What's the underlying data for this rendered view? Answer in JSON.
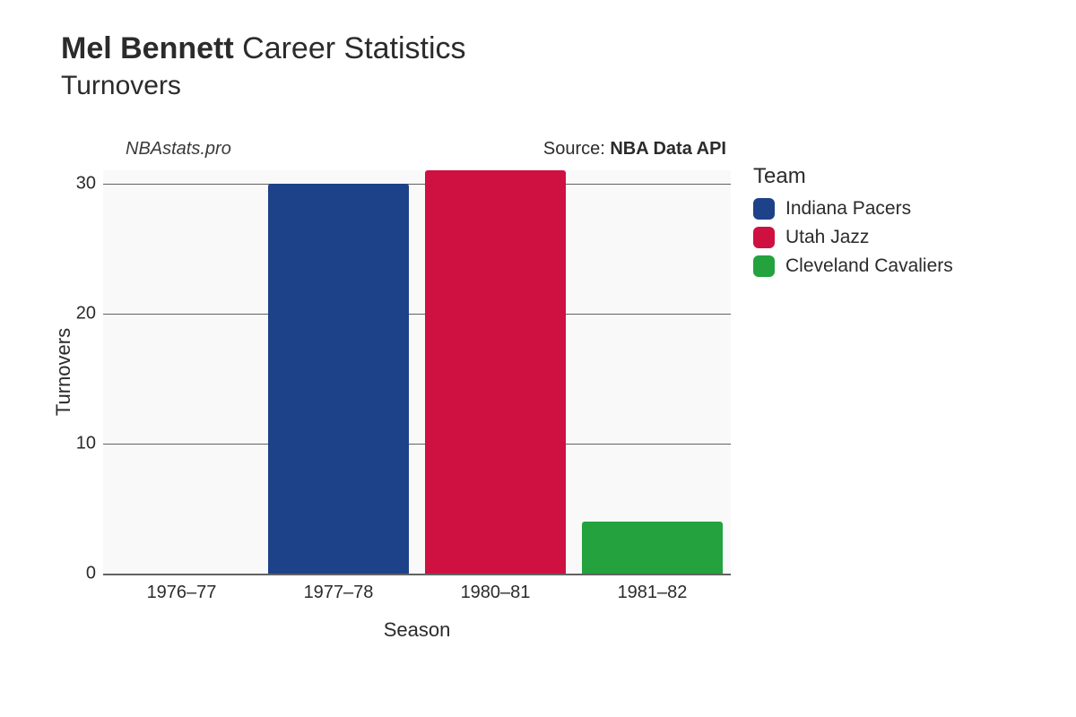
{
  "title": {
    "player_name": "Mel Bennett",
    "suffix": "Career Statistics",
    "metric": "Turnovers",
    "fontsize_line1": 34,
    "fontsize_line2": 30
  },
  "watermark": "NBAstats.pro",
  "source_prefix": "Source: ",
  "source_name": "NBA Data API",
  "chart": {
    "type": "bar",
    "background_color": "#f9f9f9",
    "grid_color": "#5a5a5a",
    "categories": [
      "1976–77",
      "1977–78",
      "1980–81",
      "1981–82"
    ],
    "values": [
      0,
      30,
      31,
      4
    ],
    "team_index": [
      0,
      0,
      1,
      2
    ],
    "teams": [
      "Indiana Pacers",
      "Utah Jazz",
      "Cleveland Cavaliers"
    ],
    "team_colors": [
      "#1d4289",
      "#ce1141",
      "#23a23e"
    ],
    "ylim": [
      0,
      31
    ],
    "yticks": [
      0,
      10,
      20,
      30
    ],
    "bar_width_ratio": 0.9,
    "bar_border_radius": 3,
    "label_fontsize": 20,
    "axis_title_fontsize": 22,
    "legend_title_fontsize": 24,
    "legend_fontsize": 21
  },
  "axes": {
    "x_title": "Season",
    "y_title": "Turnovers"
  },
  "legend": {
    "title": "Team"
  }
}
